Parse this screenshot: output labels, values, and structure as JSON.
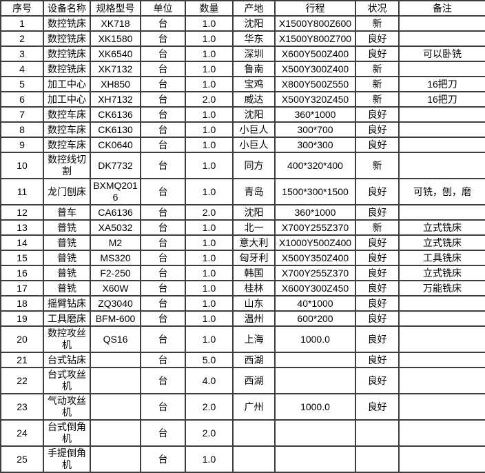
{
  "table": {
    "headers": [
      "序号",
      "设备名称",
      "规格型号",
      "单位",
      "数量",
      "产地",
      "行程",
      "状况",
      "备注"
    ],
    "rows": [
      [
        "1",
        "数控铣床",
        "XK718",
        "台",
        "1.0",
        "沈阳",
        "X1500Y800Z600",
        "新",
        ""
      ],
      [
        "2",
        "数控铣床",
        "XK1580",
        "台",
        "1.0",
        "华东",
        "X1500Y800Z700",
        "良好",
        ""
      ],
      [
        "3",
        "数控铣床",
        "XK6540",
        "台",
        "1.0",
        "深圳",
        "X600Y500Z400",
        "良好",
        "可以卧铣"
      ],
      [
        "4",
        "数控铣床",
        "XK7132",
        "台",
        "1.0",
        "鲁南",
        "X500Y300Z400",
        "新",
        ""
      ],
      [
        "5",
        "加工中心",
        "XH850",
        "台",
        "1.0",
        "宝鸡",
        "X800Y500Z550",
        "新",
        "16把刀"
      ],
      [
        "6",
        "加工中心",
        "XH7132",
        "台",
        "2.0",
        "威达",
        "X500Y320Z450",
        "新",
        "16把刀"
      ],
      [
        "7",
        "数控车床",
        "CK6136",
        "台",
        "1.0",
        "沈阳",
        "360*1000",
        "良好",
        ""
      ],
      [
        "8",
        "数控车床",
        "CK6130",
        "台",
        "1.0",
        "小巨人",
        "300*700",
        "良好",
        ""
      ],
      [
        "9",
        "数控车床",
        "CK0640",
        "台",
        "1.0",
        "小巨人",
        "300*300",
        "良好",
        ""
      ],
      [
        "10",
        "数控线切割",
        "DK7732",
        "台",
        "1.0",
        "同方",
        "400*320*400",
        "新",
        ""
      ],
      [
        "11",
        "龙门刨床",
        "BXMQ2016",
        "台",
        "1.0",
        "青岛",
        "1500*300*1500",
        "良好",
        "可铣，刨，磨"
      ],
      [
        "12",
        "普车",
        "CA6136",
        "台",
        "2.0",
        "沈阳",
        "360*1000",
        "良好",
        ""
      ],
      [
        "13",
        "普铣",
        "XA5032",
        "台",
        "1.0",
        "北一",
        "X700Y255Z370",
        "新",
        "立式铣床"
      ],
      [
        "14",
        "普铣",
        "M2",
        "台",
        "1.0",
        "意大利",
        "X1000Y500Z400",
        "良好",
        "立式铣床"
      ],
      [
        "15",
        "普铣",
        "MS320",
        "台",
        "1.0",
        "匈牙利",
        "X500Y350Z400",
        "良好",
        "工具铣床"
      ],
      [
        "16",
        "普铣",
        "F2-250",
        "台",
        "1.0",
        "韩国",
        "X700Y255Z370",
        "良好",
        "立式铣床"
      ],
      [
        "17",
        "普铣",
        "X60W",
        "台",
        "1.0",
        "桂林",
        "X600Y300Z450",
        "良好",
        "万能铣床"
      ],
      [
        "18",
        "摇臂钻床",
        "ZQ3040",
        "台",
        "1.0",
        "山东",
        "40*1000",
        "良好",
        ""
      ],
      [
        "19",
        "工具磨床",
        "BFM-600",
        "台",
        "1.0",
        "温州",
        "600*200",
        "良好",
        ""
      ],
      [
        "20",
        "数控攻丝机",
        "QS16",
        "台",
        "1.0",
        "上海",
        "1000.0",
        "良好",
        ""
      ],
      [
        "21",
        "台式钻床",
        "",
        "台",
        "5.0",
        "西湖",
        "",
        "良好",
        ""
      ],
      [
        "22",
        "台式攻丝机",
        "",
        "台",
        "4.0",
        "西湖",
        "",
        "良好",
        ""
      ],
      [
        "23",
        "气动攻丝机",
        "",
        "台",
        "2.0",
        "广州",
        "1000.0",
        "良好",
        ""
      ],
      [
        "24",
        "台式倒角机",
        "",
        "台",
        "2.0",
        "",
        "",
        "",
        ""
      ],
      [
        "25",
        "手提倒角机",
        "",
        "台",
        "1.0",
        "",
        "",
        "",
        ""
      ]
    ]
  }
}
